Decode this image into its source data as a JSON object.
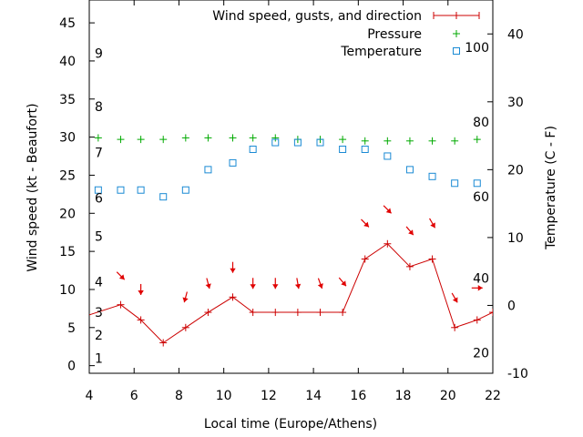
{
  "chart_data": {
    "type": "line",
    "xlabel": "Local time (Europe/Athens)",
    "ylabel": "Wind speed (kt - Beaufort)",
    "y2label": "Temperature (C - F)",
    "xlim": [
      4,
      22
    ],
    "ylim": [
      -1,
      48
    ],
    "y2lim": [
      -10,
      45
    ],
    "x_ticks": [
      4,
      6,
      8,
      10,
      12,
      14,
      16,
      18,
      20,
      22
    ],
    "y_ticks": [
      0,
      5,
      10,
      15,
      20,
      25,
      30,
      35,
      40,
      45
    ],
    "y2_ticks": [
      -10,
      0,
      10,
      20,
      30,
      40
    ],
    "beaufort_labels": [
      {
        "label": "1",
        "y": 1
      },
      {
        "label": "2",
        "y": 4
      },
      {
        "label": "3",
        "y": 7
      },
      {
        "label": "4",
        "y": 11
      },
      {
        "label": "5",
        "y": 17
      },
      {
        "label": "6",
        "y": 22
      },
      {
        "label": "7",
        "y": 28
      },
      {
        "label": "8",
        "y": 34
      },
      {
        "label": "9",
        "y": 41
      }
    ],
    "fahrenheit_labels": [
      {
        "label": "20",
        "y2": -7
      },
      {
        "label": "40",
        "y2": 4
      },
      {
        "label": "60",
        "y2": 16
      },
      {
        "label": "80",
        "y2": 27
      },
      {
        "label": "100",
        "y2": 38
      }
    ],
    "legend_position": "top-right",
    "series": [
      {
        "name": "Wind speed, gusts, and direction",
        "color": "#cc0000",
        "axis": "y",
        "x": [
          3.3,
          5.4,
          6.3,
          7.3,
          8.3,
          9.3,
          10.4,
          11.3,
          12.3,
          13.3,
          14.3,
          15.3,
          16.3,
          17.3,
          18.3,
          19.3,
          20.3,
          21.3,
          22
        ],
        "values": [
          6,
          8,
          6,
          3,
          5,
          7,
          9,
          7,
          7,
          7,
          7,
          7,
          14,
          16,
          13,
          14,
          5,
          6,
          7
        ],
        "arrows": [
          {
            "x": 5.4,
            "y": 11.8,
            "dir": 315
          },
          {
            "x": 6.3,
            "y": 10.0,
            "dir": 0
          },
          {
            "x": 8.3,
            "y": 9.0,
            "dir": 15
          },
          {
            "x": 9.3,
            "y": 10.8,
            "dir": 345
          },
          {
            "x": 10.4,
            "y": 12.9,
            "dir": 0
          },
          {
            "x": 11.3,
            "y": 10.8,
            "dir": 0
          },
          {
            "x": 12.3,
            "y": 10.8,
            "dir": 0
          },
          {
            "x": 13.3,
            "y": 10.8,
            "dir": 350
          },
          {
            "x": 14.3,
            "y": 10.8,
            "dir": 340
          },
          {
            "x": 15.3,
            "y": 11.0,
            "dir": 320
          },
          {
            "x": 16.3,
            "y": 18.7,
            "dir": 315
          },
          {
            "x": 17.3,
            "y": 20.5,
            "dir": 315
          },
          {
            "x": 18.3,
            "y": 17.7,
            "dir": 320
          },
          {
            "x": 19.3,
            "y": 18.7,
            "dir": 330
          },
          {
            "x": 20.3,
            "y": 8.9,
            "dir": 330
          },
          {
            "x": 21.3,
            "y": 10.2,
            "dir": 270
          }
        ]
      },
      {
        "name": "Pressure",
        "color": "#00aa00",
        "axis": "y",
        "x": [
          4.4,
          5.4,
          6.3,
          7.3,
          8.3,
          9.3,
          10.4,
          11.3,
          12.3,
          13.3,
          14.3,
          15.3,
          16.3,
          17.3,
          18.3,
          19.3,
          20.3,
          21.3
        ],
        "values": [
          29.9,
          29.7,
          29.7,
          29.7,
          29.9,
          29.9,
          29.9,
          29.9,
          29.9,
          29.7,
          29.7,
          29.7,
          29.5,
          29.5,
          29.5,
          29.5,
          29.5,
          29.7
        ]
      },
      {
        "name": "Temperature",
        "color": "#1a8ad4",
        "axis": "y2",
        "x": [
          4.4,
          5.4,
          6.3,
          7.3,
          8.3,
          9.3,
          10.4,
          11.3,
          12.3,
          13.3,
          14.3,
          15.3,
          16.3,
          17.3,
          18.3,
          19.3,
          20.3,
          21.3
        ],
        "values": [
          17,
          17,
          17,
          16,
          17,
          20,
          21,
          23,
          24,
          24,
          24,
          23,
          23,
          22,
          20,
          19,
          18,
          18
        ]
      }
    ]
  }
}
